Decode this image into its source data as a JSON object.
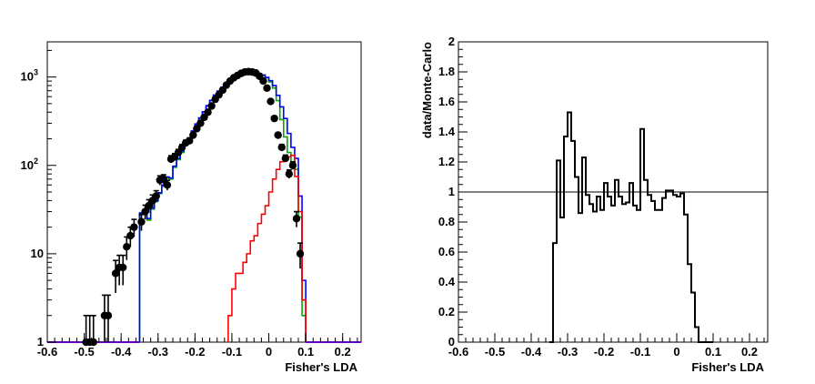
{
  "chart_data": [
    {
      "type": "histogram",
      "yscale": "log",
      "xlabel": "Fisher's LDA",
      "ylabel": "",
      "xlim": [
        -0.6,
        0.25
      ],
      "ylim": [
        1,
        2500
      ],
      "bin_width": 0.01,
      "grid": false,
      "legend": "none",
      "x_ticks": [
        {
          "v": -0.6,
          "label": "-0.6"
        },
        {
          "v": -0.5,
          "label": "-0.5"
        },
        {
          "v": -0.4,
          "label": "-0.4"
        },
        {
          "v": -0.3,
          "label": "-0.3"
        },
        {
          "v": -0.2,
          "label": "-0.2"
        },
        {
          "v": -0.1,
          "label": "-0.1"
        },
        {
          "v": 0,
          "label": "0"
        },
        {
          "v": 0.1,
          "label": "0.1"
        },
        {
          "v": 0.2,
          "label": "0.2"
        }
      ],
      "y_ticks": [
        {
          "v": 1,
          "label": "1"
        },
        {
          "v": 10,
          "label": "10"
        },
        {
          "v": 100,
          "label": "10",
          "sup": "2"
        },
        {
          "v": 1000,
          "label": "10",
          "sup": "3"
        }
      ],
      "series": [
        {
          "kind": "step",
          "color": "#00aa00",
          "x": [
            -0.35,
            -0.34,
            -0.33,
            -0.32,
            -0.31,
            -0.3,
            -0.29,
            -0.28,
            -0.27,
            -0.26,
            -0.25,
            -0.24,
            -0.23,
            -0.22,
            -0.21,
            -0.2,
            -0.19,
            -0.18,
            -0.17,
            -0.16,
            -0.15,
            -0.14,
            -0.13,
            -0.12,
            -0.11,
            -0.1,
            -0.09,
            -0.08,
            -0.07,
            -0.06,
            -0.05,
            -0.04,
            -0.03,
            -0.02,
            -0.01,
            0.0,
            0.01,
            0.02,
            0.03,
            0.04,
            0.05,
            0.06,
            0.07,
            0.08,
            0.09
          ],
          "values": [
            28,
            28,
            24,
            32,
            39,
            48,
            58,
            72,
            70,
            95,
            116,
            140,
            170,
            200,
            240,
            290,
            340,
            400,
            470,
            540,
            620,
            690,
            760,
            830,
            900,
            960,
            1010,
            1060,
            1080,
            1100,
            1110,
            1110,
            1090,
            1050,
            980,
            880,
            750,
            540,
            330,
            210,
            140,
            110,
            90,
            26,
            2
          ]
        },
        {
          "kind": "step",
          "color": "#0000ff",
          "x": [
            -0.35,
            -0.34,
            -0.33,
            -0.32,
            -0.31,
            -0.3,
            -0.29,
            -0.28,
            -0.27,
            -0.26,
            -0.25,
            -0.24,
            -0.23,
            -0.22,
            -0.21,
            -0.2,
            -0.19,
            -0.18,
            -0.17,
            -0.16,
            -0.15,
            -0.14,
            -0.13,
            -0.12,
            -0.11,
            -0.1,
            -0.09,
            -0.08,
            -0.07,
            -0.06,
            -0.05,
            -0.04,
            -0.03,
            -0.02,
            -0.01,
            0.0,
            0.01,
            0.02,
            0.03,
            0.04,
            0.05,
            0.06,
            0.07,
            0.08,
            0.09
          ],
          "values": [
            29,
            29,
            25,
            33,
            40,
            49,
            60,
            74,
            72,
            98,
            120,
            145,
            175,
            205,
            245,
            295,
            345,
            405,
            475,
            545,
            625,
            695,
            765,
            835,
            905,
            965,
            1015,
            1065,
            1085,
            1105,
            1115,
            1115,
            1095,
            1055,
            990,
            910,
            800,
            620,
            460,
            340,
            230,
            160,
            120,
            45,
            5
          ]
        },
        {
          "kind": "step",
          "color": "#ff0000",
          "x": [
            -0.11,
            -0.1,
            -0.09,
            -0.08,
            -0.07,
            -0.06,
            -0.05,
            -0.04,
            -0.03,
            -0.02,
            -0.01,
            0.0,
            0.01,
            0.02,
            0.03,
            0.04,
            0.05,
            0.06,
            0.07,
            0.08,
            0.09
          ],
          "values": [
            2,
            4,
            6,
            6,
            8,
            10,
            14,
            16,
            22,
            28,
            35,
            50,
            70,
            90,
            110,
            120,
            125,
            130,
            75,
            30,
            3
          ]
        },
        {
          "kind": "points",
          "color": "#000000",
          "x": [
            -0.495,
            -0.485,
            -0.475,
            -0.445,
            -0.435,
            -0.415,
            -0.405,
            -0.395,
            -0.385,
            -0.375,
            -0.365,
            -0.345,
            -0.335,
            -0.325,
            -0.315,
            -0.305,
            -0.295,
            -0.285,
            -0.275,
            -0.265,
            -0.255,
            -0.245,
            -0.235,
            -0.225,
            -0.215,
            -0.205,
            -0.195,
            -0.185,
            -0.175,
            -0.165,
            -0.155,
            -0.145,
            -0.135,
            -0.125,
            -0.115,
            -0.105,
            -0.095,
            -0.085,
            -0.075,
            -0.065,
            -0.055,
            -0.045,
            -0.035,
            -0.025,
            -0.015,
            -0.005,
            0.005,
            0.015,
            0.025,
            0.035,
            0.045,
            0.055,
            0.065,
            0.075,
            0.085
          ],
          "values": [
            1,
            1,
            1,
            2,
            2,
            6,
            7,
            7,
            12,
            16,
            20,
            23,
            30,
            35,
            40,
            45,
            68,
            70,
            60,
            118,
            125,
            140,
            160,
            180,
            190,
            220,
            260,
            300,
            350,
            400,
            470,
            560,
            630,
            710,
            810,
            900,
            980,
            1040,
            1100,
            1140,
            1150,
            1140,
            1110,
            1020,
            900,
            750,
            530,
            340,
            220,
            160,
            120,
            80,
            100,
            25,
            10
          ],
          "errors": [
            1,
            1,
            1,
            1.4,
            1.4,
            2.4,
            2.6,
            2.6,
            3.5,
            4,
            4.5,
            4.8,
            5.5,
            5.9,
            6.3,
            6.7,
            8.2,
            8.4,
            7.7,
            10.9,
            11.2,
            11.8,
            12.6,
            13.4,
            13.8,
            14.8,
            16.1,
            17.3,
            18.7,
            20,
            21.7,
            23.7,
            25.1,
            26.6,
            28.5,
            30,
            31.3,
            32.2,
            33.2,
            33.8,
            33.9,
            33.8,
            33.3,
            31.9,
            30,
            27.4,
            23,
            18.4,
            14.8,
            12.6,
            11,
            8.9,
            10,
            5,
            3.2
          ]
        }
      ]
    },
    {
      "type": "histogram",
      "yscale": "linear",
      "xlabel": "Fisher's LDA",
      "ylabel": "data/Monte-Carlo",
      "xlim": [
        -0.6,
        0.25
      ],
      "ylim": [
        0,
        2
      ],
      "bin_width": 0.01,
      "grid": false,
      "legend": "none",
      "reference_line": 1,
      "x_ticks": [
        {
          "v": -0.6,
          "label": "-0.6"
        },
        {
          "v": -0.5,
          "label": "-0.5"
        },
        {
          "v": -0.4,
          "label": "-0.4"
        },
        {
          "v": -0.3,
          "label": "-0.3"
        },
        {
          "v": -0.2,
          "label": "-0.2"
        },
        {
          "v": -0.1,
          "label": "-0.1"
        },
        {
          "v": 0,
          "label": "0"
        },
        {
          "v": 0.1,
          "label": "0.1"
        },
        {
          "v": 0.2,
          "label": "0.2"
        }
      ],
      "y_ticks": [
        {
          "v": 0,
          "label": "0"
        },
        {
          "v": 0.2,
          "label": "0.2"
        },
        {
          "v": 0.4,
          "label": "0.4"
        },
        {
          "v": 0.6,
          "label": "0.6"
        },
        {
          "v": 0.8,
          "label": "0.8"
        },
        {
          "v": 1,
          "label": "1"
        },
        {
          "v": 1.2,
          "label": "1.2"
        },
        {
          "v": 1.4,
          "label": "1.4"
        },
        {
          "v": 1.6,
          "label": "1.6"
        },
        {
          "v": 1.8,
          "label": "1.8"
        },
        {
          "v": 2,
          "label": "2"
        }
      ],
      "series": [
        {
          "kind": "step",
          "color": "#000000",
          "x": [
            -0.35,
            -0.34,
            -0.33,
            -0.32,
            -0.31,
            -0.3,
            -0.29,
            -0.28,
            -0.27,
            -0.26,
            -0.25,
            -0.24,
            -0.23,
            -0.22,
            -0.21,
            -0.2,
            -0.19,
            -0.18,
            -0.17,
            -0.16,
            -0.15,
            -0.14,
            -0.13,
            -0.12,
            -0.11,
            -0.1,
            -0.09,
            -0.08,
            -0.07,
            -0.06,
            -0.05,
            -0.04,
            -0.03,
            -0.02,
            -0.01,
            0.0,
            0.01,
            0.02,
            0.03,
            0.04,
            0.05,
            0.06,
            0.07,
            0.08,
            0.09
          ],
          "values": [
            0,
            0.66,
            1.21,
            0.83,
            1.37,
            1.53,
            1.34,
            1.1,
            0.86,
            1.23,
            0.98,
            0.92,
            0.87,
            0.97,
            0.88,
            1.06,
            0.97,
            0.91,
            1.08,
            0.97,
            0.92,
            0.93,
            1.06,
            0.91,
            0.88,
            1.42,
            1.08,
            0.98,
            0.94,
            0.88,
            0.88,
            0.96,
            1.01,
            1.01,
            0.98,
            0.97,
            0.99,
            0.85,
            0.52,
            0.33,
            0.1,
            0,
            0,
            0,
            0
          ]
        }
      ]
    }
  ]
}
